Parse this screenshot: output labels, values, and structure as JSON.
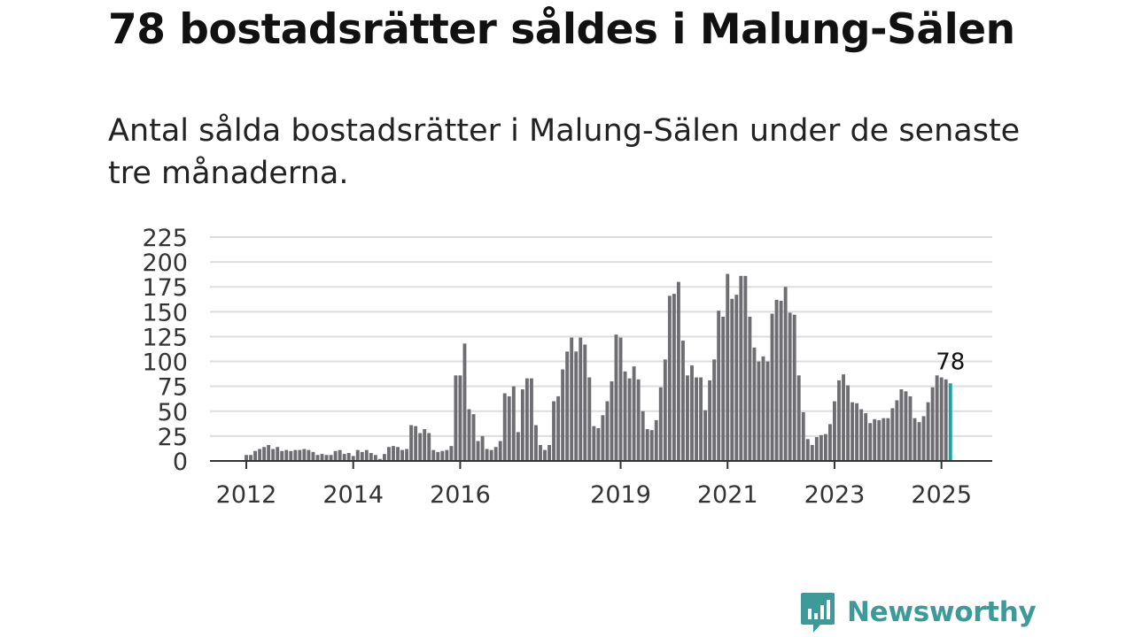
{
  "headline": "78 bostadsrätter såldes i Malung-Sälen",
  "subtitle": "Antal sålda bostadsrätter i Malung-Sälen under de senaste tre månaderna.",
  "brand": {
    "name": "Newsworthy",
    "icon": "newsworthy-logo-icon",
    "color": "#3c9b98"
  },
  "colors": {
    "bar": "#6e6d72",
    "highlight": "#1aa3a3",
    "grid": "#dddddd",
    "axis": "#333333"
  },
  "chart_data": {
    "type": "bar",
    "title": "78 bostadsrätter såldes i Malung-Sälen",
    "xlabel": "",
    "ylabel": "",
    "ylim": [
      0,
      225
    ],
    "yticks": [
      0,
      25,
      50,
      75,
      100,
      125,
      150,
      175,
      200,
      225
    ],
    "xticks": [
      {
        "label": "2012",
        "index": 0
      },
      {
        "label": "2014",
        "index": 24
      },
      {
        "label": "2016",
        "index": 48
      },
      {
        "label": "2019",
        "index": 84
      },
      {
        "label": "2021",
        "index": 108
      },
      {
        "label": "2023",
        "index": 132
      },
      {
        "label": "2025",
        "index": 156
      }
    ],
    "start": "2012-01",
    "highlight_label": "78",
    "grid": true,
    "values": [
      6,
      6,
      10,
      12,
      14,
      16,
      12,
      14,
      10,
      11,
      10,
      11,
      11,
      12,
      11,
      9,
      6,
      7,
      6,
      6,
      10,
      11,
      7,
      8,
      5,
      11,
      9,
      11,
      8,
      6,
      2,
      7,
      14,
      15,
      14,
      11,
      12,
      36,
      35,
      28,
      32,
      28,
      11,
      9,
      10,
      11,
      15,
      86,
      86,
      118,
      52,
      47,
      20,
      25,
      12,
      11,
      14,
      20,
      68,
      65,
      75,
      29,
      72,
      83,
      83,
      36,
      16,
      11,
      16,
      60,
      65,
      92,
      110,
      124,
      110,
      124,
      117,
      84,
      35,
      33,
      46,
      60,
      80,
      127,
      124,
      90,
      83,
      95,
      82,
      50,
      32,
      31,
      41,
      74,
      102,
      166,
      168,
      180,
      121,
      86,
      96,
      84,
      84,
      51,
      81,
      102,
      151,
      145,
      188,
      163,
      167,
      186,
      186,
      145,
      114,
      100,
      105,
      100,
      148,
      162,
      161,
      175,
      149,
      147,
      86,
      49,
      22,
      16,
      24,
      26,
      27,
      37,
      60,
      81,
      87,
      76,
      59,
      58,
      52,
      48,
      38,
      42,
      41,
      43,
      43,
      53,
      61,
      72,
      70,
      65,
      43,
      39,
      45,
      59,
      74,
      86,
      84,
      82,
      78
    ]
  }
}
